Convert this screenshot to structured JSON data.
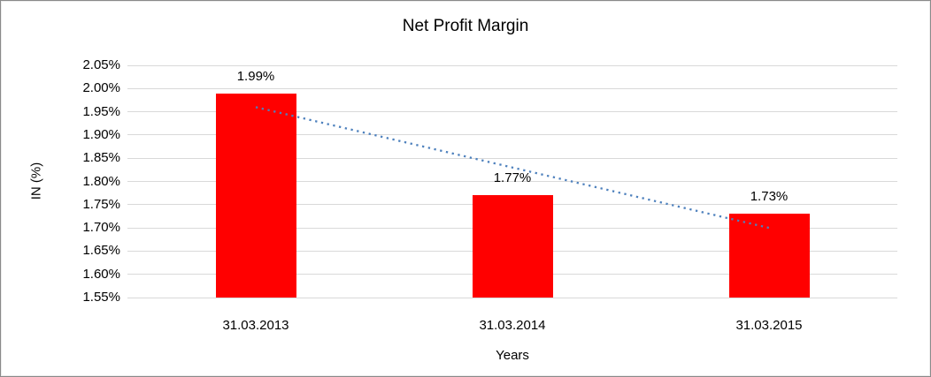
{
  "window": {
    "background_color": "#FFFFFF",
    "border_color": "#8A8A8A"
  },
  "chart_data": {
    "type": "bar",
    "title": "Net Profit Margin",
    "xlabel": "Years",
    "ylabel": "IN (%)",
    "categories": [
      "31.03.2013",
      "31.03.2014",
      "31.03.2015"
    ],
    "values": [
      1.99,
      1.77,
      1.73
    ],
    "data_labels": [
      "1.99%",
      "1.77%",
      "1.73%"
    ],
    "ylim": [
      1.55,
      2.05
    ],
    "ytick_step": 0.05,
    "ytick_labels": [
      "2.05%",
      "2.00%",
      "1.95%",
      "1.90%",
      "1.85%",
      "1.80%",
      "1.75%",
      "1.70%",
      "1.65%",
      "1.60%",
      "1.55%"
    ],
    "grid": true,
    "legend_position": "none",
    "bar_color": "#FF0000",
    "gridline_color": "#D9D9D9",
    "text_color": "#000000",
    "trendline": {
      "type": "linear",
      "style": "dotted",
      "color": "#4E81BD",
      "start_value": 1.96,
      "end_value": 1.7
    }
  }
}
